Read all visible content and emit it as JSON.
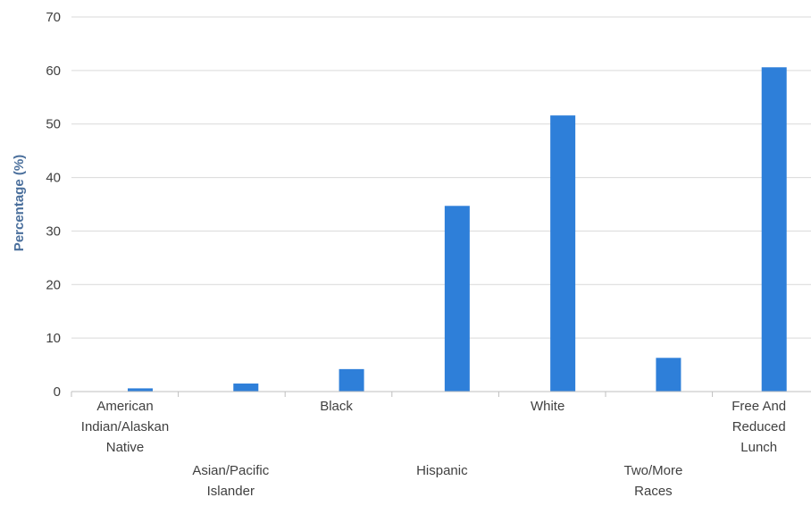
{
  "chart_data": {
    "type": "bar",
    "categories": [
      [
        "American",
        "Indian/Alaskan",
        "Native"
      ],
      [
        "Asian/Pacific",
        "Islander"
      ],
      [
        "Black"
      ],
      [
        "Hispanic"
      ],
      [
        "White"
      ],
      [
        "Two/More",
        "Races"
      ],
      [
        "Free And",
        "Reduced",
        "Lunch"
      ]
    ],
    "values": [
      0.6,
      1.5,
      4.2,
      34.7,
      51.6,
      6.3,
      60.6
    ],
    "ylabel": "Percentage (%)",
    "ylim": [
      0,
      70
    ],
    "yticks": [
      0,
      10,
      20,
      30,
      40,
      50,
      60,
      70
    ],
    "grid": true,
    "bar_color": "#2e7fd9"
  }
}
